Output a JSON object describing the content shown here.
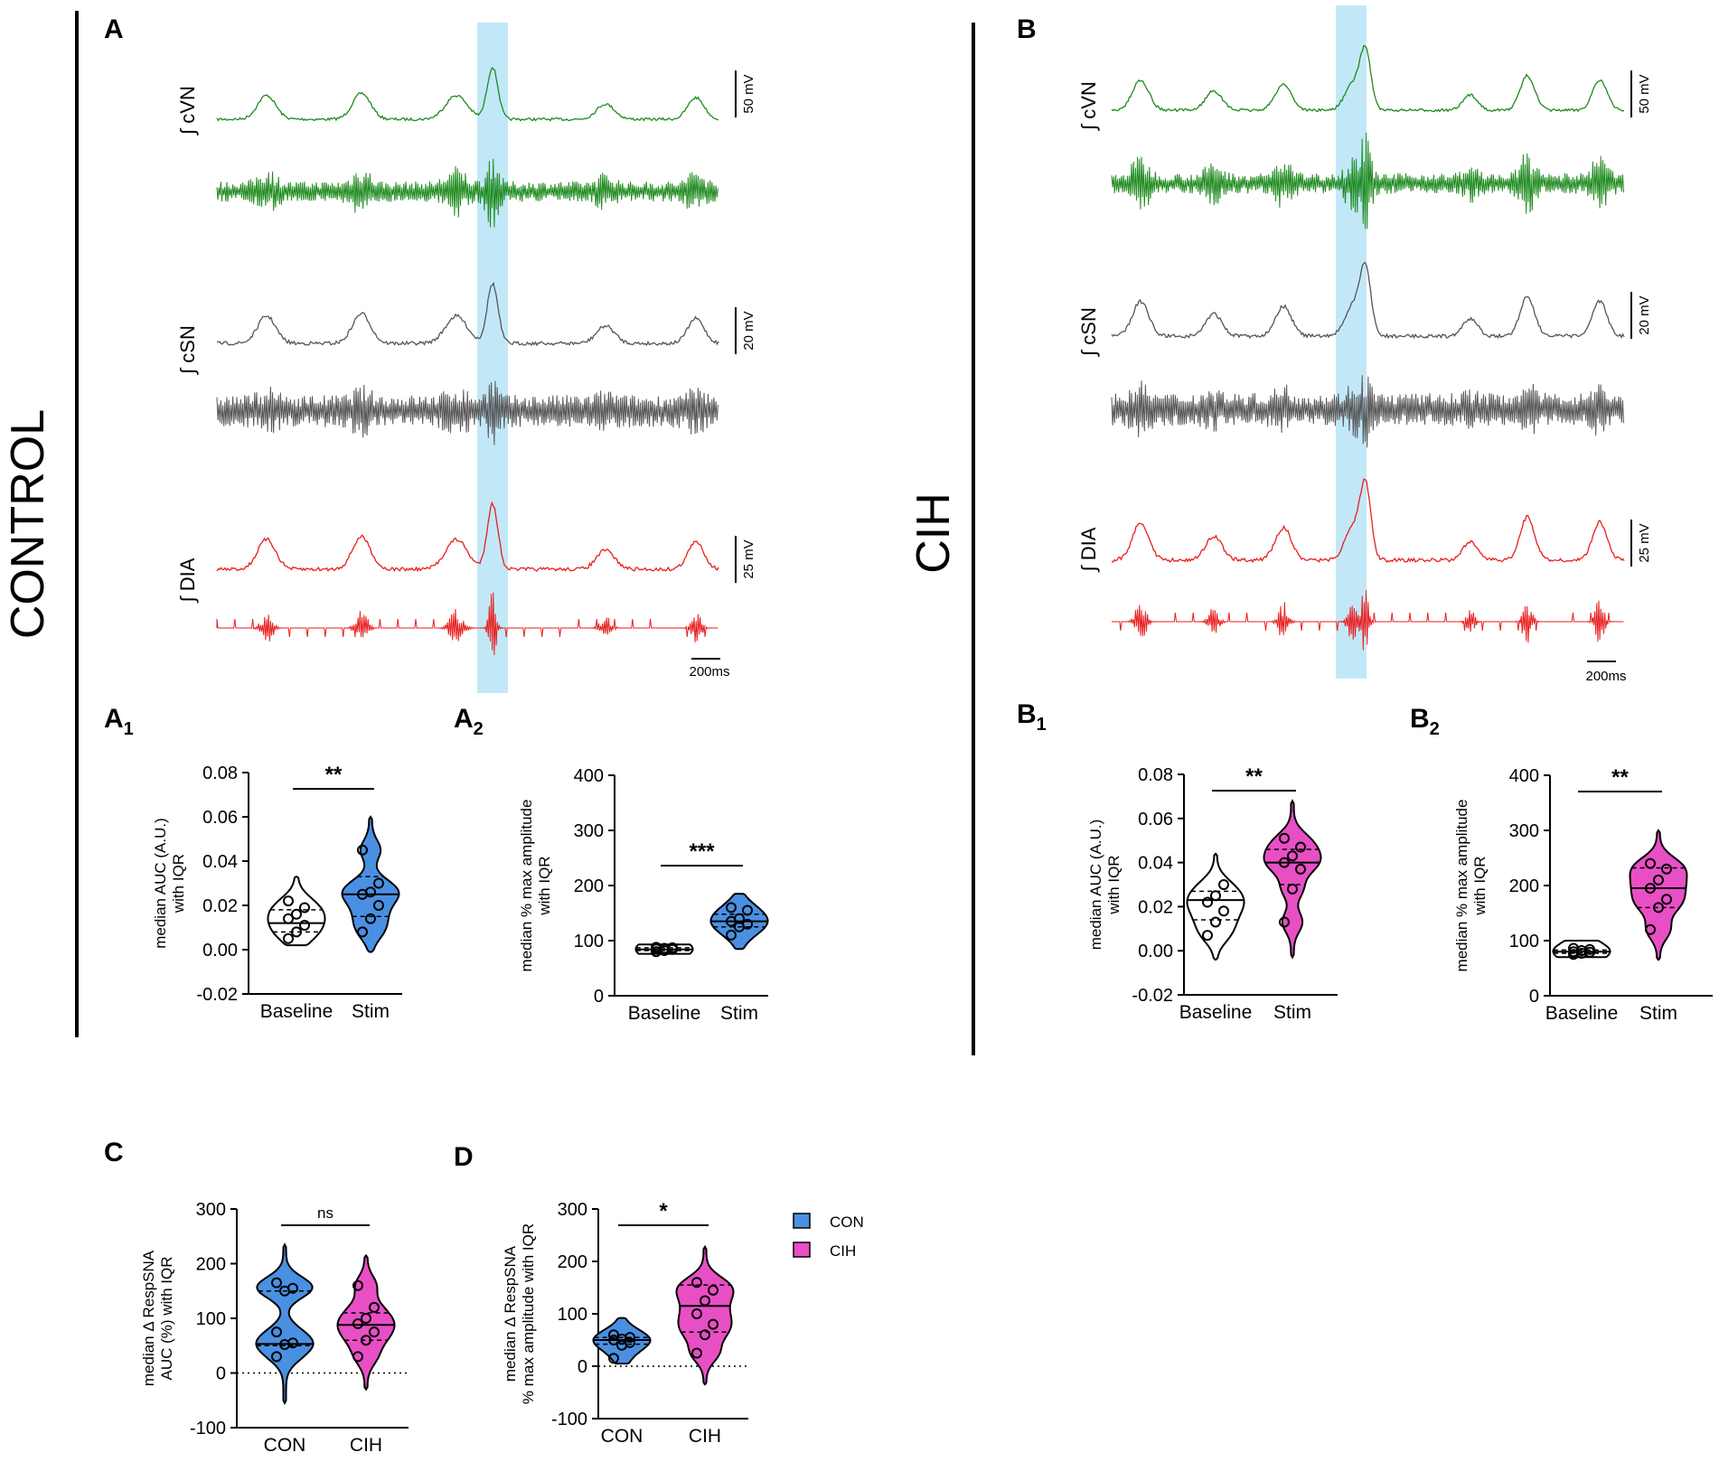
{
  "conditions": {
    "control": "CONTROL",
    "cih": "CIH"
  },
  "panels": {
    "A": "A",
    "A1": "A",
    "A1sub": "1",
    "A2": "A",
    "A2sub": "2",
    "B": "B",
    "B1": "B",
    "B1sub": "1",
    "B2": "B",
    "B2sub": "2",
    "C": "C",
    "D": "D"
  },
  "traces": {
    "labels": [
      "∫ cVN",
      "∫ cSN",
      "∫ DIA"
    ],
    "scales": [
      "50 mV",
      "20 mV",
      "25 mV"
    ],
    "timebar": "200ms"
  },
  "colors": {
    "con": "#4a90e2",
    "cih": "#e84fc4",
    "vn": "#1e8a1e",
    "sn": "#555555",
    "dia": "#e81e1e",
    "stim": "#aee0f5"
  },
  "legend": {
    "items": [
      {
        "label": "CON",
        "color": "#4a90e2"
      },
      {
        "label": "CIH",
        "color": "#e84fc4"
      }
    ]
  },
  "chart_data": [
    {
      "id": "A1",
      "type": "violin",
      "ylabel": [
        "median AUC  (A.U.)",
        "with IQR"
      ],
      "ylim": [
        -0.02,
        0.08
      ],
      "yticks": [
        -0.02,
        0.0,
        0.02,
        0.04,
        0.06,
        0.08
      ],
      "ytickLabels": [
        "-0.02",
        "0.00",
        "0.02",
        "0.04",
        "0.06",
        "0.08"
      ],
      "categories": [
        "Baseline",
        "Stim"
      ],
      "sig": "**",
      "groups": [
        {
          "color": "#ffffff",
          "points": [
            0.005,
            0.008,
            0.011,
            0.014,
            0.016,
            0.019,
            0.022
          ],
          "median": 0.012,
          "q1": 0.008,
          "q3": 0.018,
          "min": 0.002,
          "max": 0.033
        },
        {
          "color": "#4a90e2",
          "points": [
            0.008,
            0.014,
            0.02,
            0.025,
            0.026,
            0.03,
            0.045
          ],
          "median": 0.025,
          "q1": 0.015,
          "q3": 0.033,
          "min": -0.001,
          "max": 0.06
        }
      ]
    },
    {
      "id": "A2",
      "type": "violin",
      "ylabel": [
        "median % max amplitude",
        "with IQR"
      ],
      "ylim": [
        0,
        400
      ],
      "yticks": [
        0,
        100,
        200,
        300,
        400
      ],
      "ytickLabels": [
        "0",
        "100",
        "200",
        "300",
        "400"
      ],
      "categories": [
        "Baseline",
        "Stim"
      ],
      "sig": "***",
      "groups": [
        {
          "color": "#ffffff",
          "points": [
            80,
            82,
            84,
            85,
            86,
            87,
            88
          ],
          "median": 84,
          "q1": 82,
          "q3": 87,
          "min": 76,
          "max": 93
        },
        {
          "color": "#4a90e2",
          "points": [
            110,
            125,
            130,
            135,
            140,
            155,
            160
          ],
          "median": 135,
          "q1": 125,
          "q3": 148,
          "min": 85,
          "max": 185
        }
      ]
    },
    {
      "id": "B1",
      "type": "violin",
      "ylabel": [
        "median AUC (A.U.)",
        "with IQR"
      ],
      "ylim": [
        -0.02,
        0.08
      ],
      "yticks": [
        -0.02,
        0.0,
        0.02,
        0.04,
        0.06,
        0.08
      ],
      "ytickLabels": [
        "-0.02",
        "0.00",
        "0.02",
        "0.04",
        "0.06",
        "0.08"
      ],
      "categories": [
        "Baseline",
        "Stim"
      ],
      "sig": "**",
      "groups": [
        {
          "color": "#ffffff",
          "points": [
            0.007,
            0.013,
            0.018,
            0.022,
            0.025,
            0.03
          ],
          "median": 0.023,
          "q1": 0.014,
          "q3": 0.027,
          "min": -0.004,
          "max": 0.044
        },
        {
          "color": "#e84fc4",
          "points": [
            0.013,
            0.028,
            0.037,
            0.04,
            0.043,
            0.047,
            0.051
          ],
          "median": 0.04,
          "q1": 0.03,
          "q3": 0.046,
          "min": -0.003,
          "max": 0.068
        }
      ]
    },
    {
      "id": "B2",
      "type": "violin",
      "ylabel": [
        "median % max amplitude",
        "with IQR"
      ],
      "ylim": [
        0,
        400
      ],
      "yticks": [
        0,
        100,
        200,
        300,
        400
      ],
      "ytickLabels": [
        "0",
        "100",
        "200",
        "300",
        "400"
      ],
      "categories": [
        "Baseline",
        "Stim"
      ],
      "sig": "**",
      "groups": [
        {
          "color": "#ffffff",
          "points": [
            75,
            77,
            79,
            80,
            82,
            84,
            86
          ],
          "median": 80,
          "q1": 77,
          "q3": 83,
          "min": 70,
          "max": 100
        },
        {
          "color": "#e84fc4",
          "points": [
            120,
            160,
            175,
            195,
            210,
            230,
            240
          ],
          "median": 195,
          "q1": 160,
          "q3": 232,
          "min": 65,
          "max": 300
        }
      ]
    },
    {
      "id": "C",
      "type": "violin",
      "ylabel": [
        "median Δ RespSNA",
        "AUC (%) with IQR"
      ],
      "ylim": [
        -100,
        300
      ],
      "yticks": [
        -100,
        0,
        100,
        200,
        300
      ],
      "ytickLabels": [
        "-100",
        "0",
        "100",
        "200",
        "300"
      ],
      "categories": [
        "CON",
        "CIH"
      ],
      "sig": "ns",
      "zeroline": true,
      "groups": [
        {
          "color": "#4a90e2",
          "points": [
            30,
            52,
            55,
            75,
            150,
            155,
            165
          ],
          "median": 53,
          "q1": 50,
          "q3": 150,
          "min": -55,
          "max": 235
        },
        {
          "color": "#e84fc4",
          "points": [
            30,
            60,
            75,
            90,
            100,
            120,
            160
          ],
          "median": 88,
          "q1": 60,
          "q3": 110,
          "min": -30,
          "max": 215
        }
      ]
    },
    {
      "id": "D",
      "type": "violin",
      "ylabel": [
        "median Δ RespSNA",
        "% max amplitude with IQR"
      ],
      "ylim": [
        -100,
        300
      ],
      "yticks": [
        -100,
        0,
        100,
        200,
        300
      ],
      "ytickLabels": [
        "-100",
        "0",
        "100",
        "200",
        "300"
      ],
      "categories": [
        "CON",
        "CIH"
      ],
      "sig": "*",
      "zeroline": true,
      "groups": [
        {
          "color": "#4a90e2",
          "points": [
            15,
            40,
            45,
            50,
            52,
            55,
            60
          ],
          "median": 50,
          "q1": 42,
          "q3": 55,
          "min": 5,
          "max": 92
        },
        {
          "color": "#e84fc4",
          "points": [
            25,
            60,
            80,
            100,
            125,
            145,
            160
          ],
          "median": 115,
          "q1": 65,
          "q3": 155,
          "min": -35,
          "max": 228
        }
      ]
    }
  ]
}
